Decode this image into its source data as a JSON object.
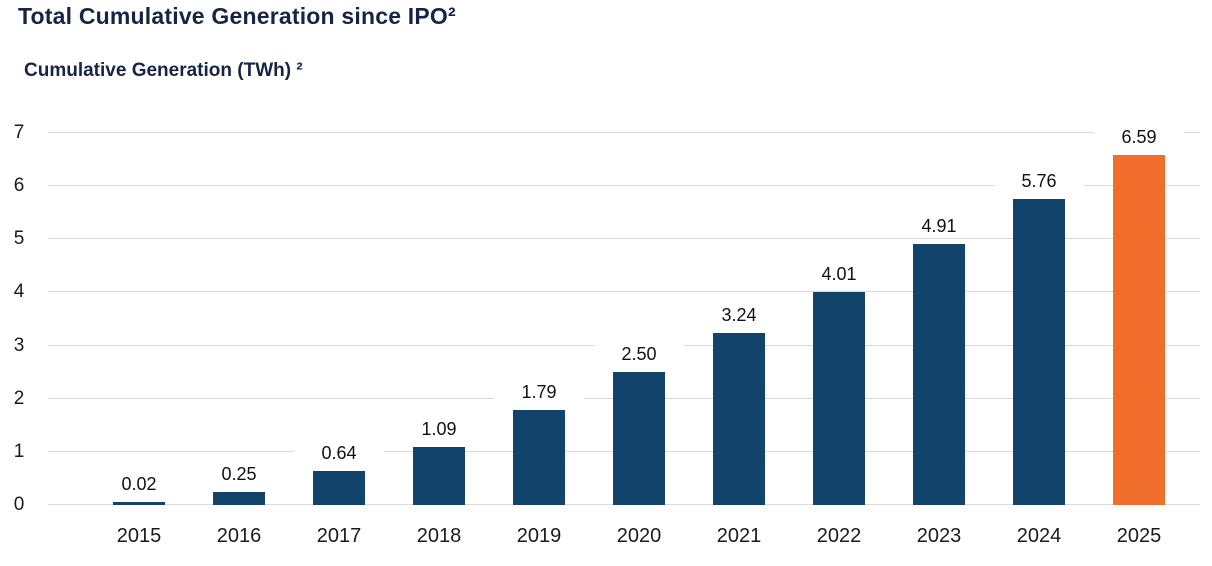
{
  "page": {
    "background": "#ffffff"
  },
  "header": {
    "title": "Total Cumulative Generation since IPO²",
    "axis_title": "Cumulative Generation (TWh) ²"
  },
  "chart_data": {
    "type": "bar",
    "title": "Total Cumulative Generation since IPO²",
    "ylabel": "Cumulative Generation (TWh) ²",
    "xlabel": "",
    "categories": [
      "2015",
      "2016",
      "2017",
      "2018",
      "2019",
      "2020",
      "2021",
      "2022",
      "2023",
      "2024",
      "2025"
    ],
    "values": [
      0.02,
      0.25,
      0.64,
      1.09,
      1.79,
      2.5,
      3.24,
      4.01,
      4.91,
      5.76,
      6.59
    ],
    "value_labels": [
      "0.02",
      "0.25",
      "0.64",
      "1.09",
      "1.79",
      "2.50",
      "3.24",
      "4.01",
      "4.91",
      "5.76",
      "6.59"
    ],
    "ylim": [
      0,
      7
    ],
    "yticks": [
      0,
      1,
      2,
      3,
      4,
      5,
      6,
      7
    ],
    "grid": true,
    "legend_position": "none",
    "bar_color": "#11436b",
    "highlight_index": 10,
    "highlight_color": "#f26e2d",
    "gridline_color": "#d9d9d9",
    "tick_label_color": "#1a1a1a",
    "value_label_color": "#111111",
    "title_color": "#152447"
  }
}
